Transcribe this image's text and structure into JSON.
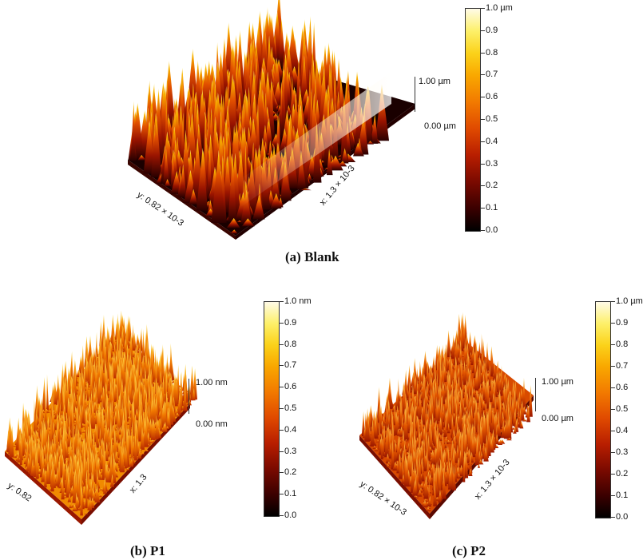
{
  "panels": [
    {
      "id": "blank",
      "caption": "(a) Blank",
      "unit_max_label": "1.0 µm",
      "scale_ticks": [
        "0.9",
        "0.8",
        "0.7",
        "0.6",
        "0.5",
        "0.4",
        "0.3",
        "0.2",
        "0.1",
        "0.0"
      ],
      "height_top": "1.00 µm",
      "height_bottom": "0.00 µm",
      "y_axis": "y: 0.82 × 10-3",
      "x_axis": "x: 1.3 × 10-3"
    },
    {
      "id": "p1",
      "caption": "(b) P1",
      "unit_max_label": "1.0 nm",
      "scale_ticks": [
        "0.9",
        "0.8",
        "0.7",
        "0.6",
        "0.5",
        "0.4",
        "0.3",
        "0.2",
        "0.1",
        "0.0"
      ],
      "height_top": "1.00 nm",
      "height_bottom": "0.00 nm",
      "y_axis": "y: 0.82",
      "x_axis": "x: 1.3"
    },
    {
      "id": "p2",
      "caption": "(c) P2",
      "unit_max_label": "1.0 µm",
      "scale_ticks": [
        "0.9",
        "0.8",
        "0.7",
        "0.6",
        "0.5",
        "0.4",
        "0.3",
        "0.2",
        "0.1",
        "0.0"
      ],
      "height_top": "1.00 µm",
      "height_bottom": "0.00 µm",
      "y_axis": "y: 0.82 × 10-3",
      "x_axis": "x: 1.3 × 10-3"
    }
  ]
}
